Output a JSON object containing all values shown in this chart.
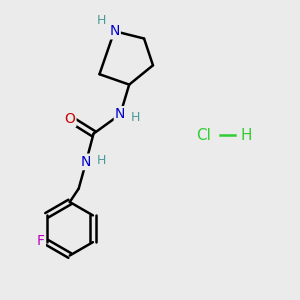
{
  "bg_color": "#ebebeb",
  "atom_colors": {
    "C": "#000000",
    "N": "#0000cc",
    "O": "#cc0000",
    "F": "#bb00bb",
    "H_ring": "#4a9a9a",
    "H_urea": "#4a9a9a",
    "Cl": "#33cc33"
  },
  "bond_color": "#000000",
  "bond_width": 1.8,
  "figsize": [
    3.0,
    3.0
  ],
  "dpi": 100,
  "xlim": [
    0,
    10
  ],
  "ylim": [
    0,
    10
  ]
}
